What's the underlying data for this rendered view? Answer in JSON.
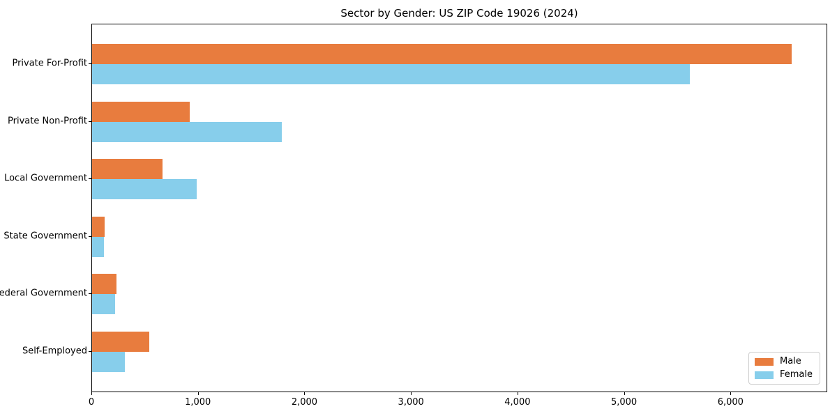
{
  "title": "Sector by Gender: US ZIP Code 19026 (2024)",
  "chart_data": {
    "type": "bar",
    "orientation": "horizontal",
    "title": "Sector by Gender: US ZIP Code 19026 (2024)",
    "xlabel": "",
    "ylabel": "",
    "categories": [
      "Private For-Profit",
      "Private Non-Profit",
      "Local Government",
      "State Government",
      "Federal Government",
      "Self-Employed"
    ],
    "series": [
      {
        "name": "Male",
        "color": "#E87C3E",
        "values": [
          6565,
          915,
          660,
          120,
          230,
          535
        ]
      },
      {
        "name": "Female",
        "color": "#87CEEB",
        "values": [
          5610,
          1780,
          985,
          110,
          215,
          305
        ]
      }
    ],
    "xlim": [
      0,
      6895
    ],
    "xticks": [
      0,
      1000,
      2000,
      3000,
      4000,
      5000,
      6000
    ],
    "xtick_labels": [
      "0",
      "1,000",
      "2,000",
      "3,000",
      "4,000",
      "5,000",
      "6,000"
    ],
    "grid": false,
    "legend_position": "lower right"
  },
  "legend": {
    "items": [
      {
        "label": "Male",
        "color": "#E87C3E"
      },
      {
        "label": "Female",
        "color": "#87CEEB"
      }
    ]
  }
}
